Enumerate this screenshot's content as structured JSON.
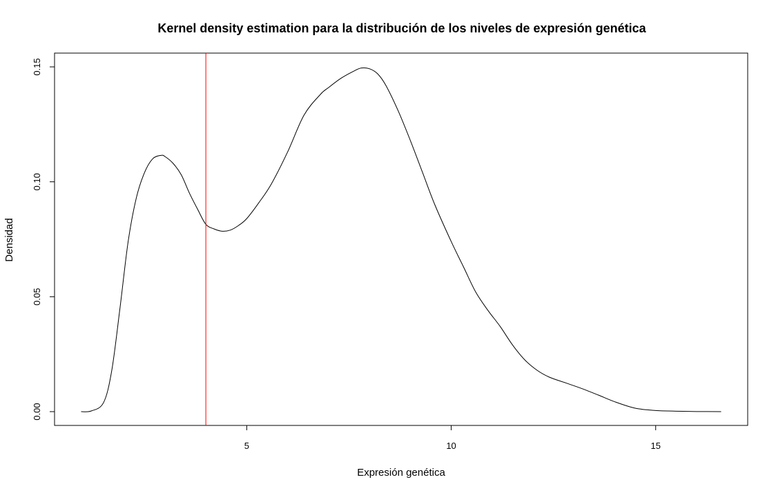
{
  "chart_data": {
    "type": "line",
    "title": "Kernel density estimation para la distribución de los niveles de expresión genética",
    "xlabel": "Expresión genética",
    "ylabel": "Densidad",
    "xlim": [
      0.3,
      17.25
    ],
    "ylim": [
      -0.006,
      0.156
    ],
    "x_ticks": [
      5,
      10,
      15
    ],
    "x_tick_labels": [
      "5",
      "10",
      "15"
    ],
    "y_ticks": [
      0.0,
      0.05,
      0.1,
      0.15
    ],
    "y_tick_labels": [
      "0.00",
      "0.05",
      "0.10",
      "0.15"
    ],
    "grid": false,
    "legend": "none",
    "series": [
      {
        "color": "#000000",
        "x": [
          0.95,
          1.2,
          1.5,
          1.7,
          1.9,
          2.1,
          2.3,
          2.5,
          2.7,
          2.9,
          3.0,
          3.2,
          3.4,
          3.6,
          3.8,
          4.0,
          4.2,
          4.4,
          4.6,
          4.8,
          5.0,
          5.3,
          5.6,
          6.0,
          6.4,
          6.8,
          7.0,
          7.3,
          7.6,
          7.8,
          8.0,
          8.2,
          8.4,
          8.7,
          9.0,
          9.3,
          9.6,
          10.0,
          10.3,
          10.6,
          10.9,
          11.2,
          11.5,
          11.8,
          12.1,
          12.4,
          12.8,
          13.2,
          13.6,
          14.0,
          14.5,
          15.0,
          15.5,
          16.0,
          16.6
        ],
        "y": [
          0.0,
          0.0003,
          0.004,
          0.018,
          0.045,
          0.074,
          0.093,
          0.104,
          0.11,
          0.1115,
          0.111,
          0.108,
          0.103,
          0.095,
          0.088,
          0.0815,
          0.0795,
          0.0785,
          0.079,
          0.081,
          0.084,
          0.091,
          0.099,
          0.113,
          0.129,
          0.138,
          0.141,
          0.145,
          0.148,
          0.1495,
          0.1492,
          0.147,
          0.142,
          0.131,
          0.118,
          0.104,
          0.09,
          0.074,
          0.063,
          0.052,
          0.044,
          0.037,
          0.029,
          0.0225,
          0.018,
          0.015,
          0.0125,
          0.01,
          0.0072,
          0.0043,
          0.0015,
          0.0005,
          0.0002,
          5e-05,
          0.0
        ]
      }
    ],
    "vertical_line": {
      "x": 4.0,
      "color": "#ff0000"
    }
  }
}
